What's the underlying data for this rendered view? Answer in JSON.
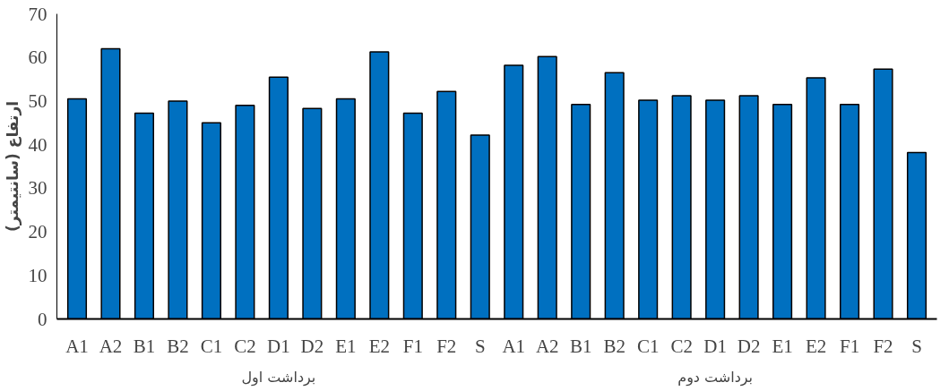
{
  "chart_data": {
    "type": "bar",
    "ylabel": "ارتفاع (سانتیمتر)",
    "categories": [
      "A1",
      "A2",
      "B1",
      "B2",
      "C1",
      "C2",
      "D1",
      "D2",
      "E1",
      "E2",
      "F1",
      "F2",
      "S",
      "A1",
      "A2",
      "B1",
      "B2",
      "C1",
      "C2",
      "D1",
      "D2",
      "E1",
      "E2",
      "F1",
      "F2",
      "S"
    ],
    "values": [
      50.5,
      62,
      47.2,
      50,
      45,
      49,
      55.5,
      48.3,
      50.5,
      61.3,
      47.2,
      52.2,
      42.2,
      58.2,
      60.2,
      49.2,
      56.5,
      50.2,
      51.2,
      50.2,
      51.2,
      49.2,
      55.3,
      49.2,
      57.3,
      38.2
    ],
    "color": "#0070c0",
    "annotations": [
      "برداشت اول",
      "برداشت دوم"
    ],
    "ylim": [
      0,
      70
    ],
    "yticks": [
      0,
      10,
      20,
      30,
      40,
      50,
      60,
      70
    ],
    "grid": false
  }
}
